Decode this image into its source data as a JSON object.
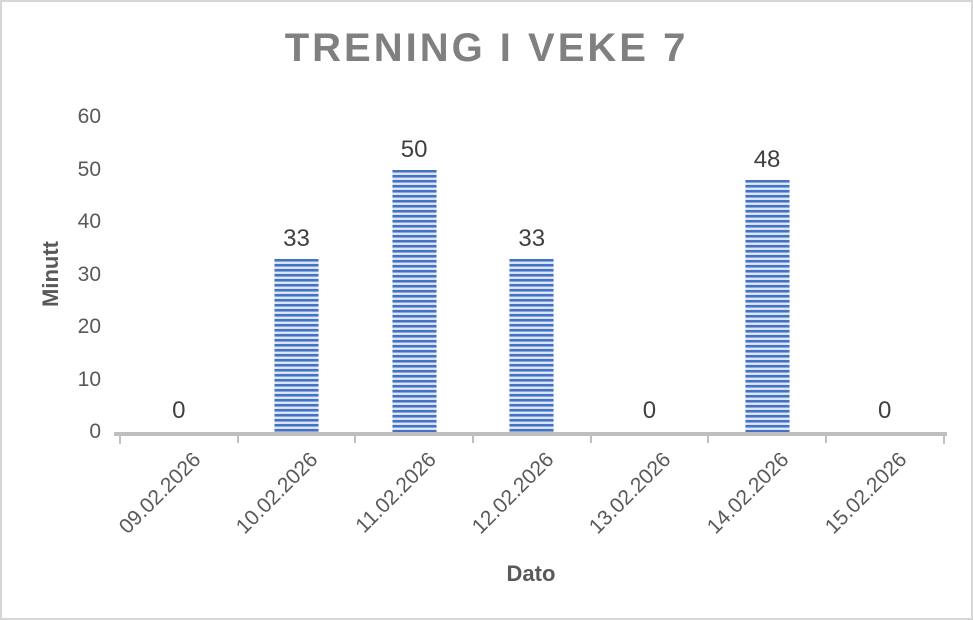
{
  "frame": {
    "background": "#FFFFFF",
    "border_color": "#D6D6D6"
  },
  "chart_data": {
    "type": "bar",
    "title": "TRENING I VEKE 7",
    "xlabel": "Dato",
    "ylabel": "Minutt",
    "categories": [
      "09.02.2026",
      "10.02.2026",
      "11.02.2026",
      "12.02.2026",
      "13.02.2026",
      "14.02.2026",
      "15.02.2026"
    ],
    "values": [
      0,
      33,
      50,
      33,
      0,
      48,
      0
    ],
    "data_labels": [
      "0",
      "33",
      "50",
      "33",
      "0",
      "48",
      "0"
    ],
    "y_ticks": [
      0,
      10,
      20,
      30,
      40,
      50,
      60
    ],
    "ylim": [
      0,
      60
    ],
    "grid": false,
    "legend_position": "none",
    "bar_fill_pattern": "horizontal-stripes",
    "colors": {
      "bar_primary": "#4472C4",
      "bar_stripe_light": "#E9EFF9",
      "title_text": "#808080",
      "axis_text": "#595959",
      "data_label_text": "#404040",
      "axis_line": "#BFBFBF"
    }
  }
}
